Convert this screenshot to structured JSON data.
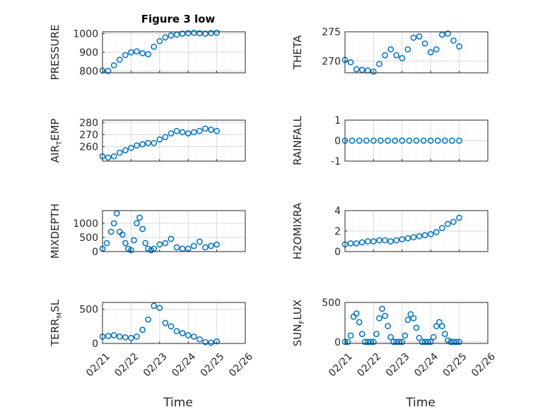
{
  "figure": {
    "title": "Figure 3 low"
  },
  "colors": {
    "marker": "#0072BD",
    "axis": "#262626",
    "grid": "#d9d9d9",
    "background": "#ffffff"
  },
  "x_ticks": [
    "02/21",
    "02/22",
    "02/23",
    "02/24",
    "02/25",
    "02/26"
  ],
  "x_label": "Time",
  "chart_data": [
    {
      "type": "scatter",
      "title": "Figure 3 low",
      "ylabel": "PRESSURE",
      "ylim": [
        790,
        1010
      ],
      "yticks": [
        800,
        900,
        1000
      ],
      "grid": "on",
      "xlim": [
        "02/21",
        "02/26"
      ],
      "x": [
        0,
        0.2,
        0.4,
        0.6,
        0.8,
        1.0,
        1.2,
        1.4,
        1.6,
        1.8,
        2.0,
        2.2,
        2.4,
        2.6,
        2.8,
        3.0,
        3.2,
        3.4,
        3.6,
        3.8,
        4.0
      ],
      "values": [
        802,
        800,
        830,
        860,
        885,
        900,
        905,
        895,
        890,
        930,
        960,
        980,
        990,
        995,
        1000,
        1003,
        1005,
        1002,
        1000,
        1003,
        1005
      ]
    },
    {
      "type": "scatter",
      "ylabel": "THETA",
      "ylim": [
        268,
        275
      ],
      "yticks": [
        270,
        275
      ],
      "grid": "on",
      "x": [
        0,
        0.2,
        0.4,
        0.6,
        0.8,
        1.0,
        1.2,
        1.4,
        1.6,
        1.8,
        2.0,
        2.2,
        2.4,
        2.6,
        2.8,
        3.0,
        3.2,
        3.4,
        3.6,
        3.8,
        4.0
      ],
      "values": [
        270.2,
        269.8,
        268.6,
        268.5,
        268.4,
        268.2,
        269.5,
        271,
        272,
        271,
        270.5,
        272,
        274,
        274.2,
        273,
        271.5,
        272,
        274.5,
        274.7,
        273.5,
        272.5
      ]
    },
    {
      "type": "scatter",
      "ylabel": "AIR_TEMP",
      "ylim": [
        248,
        282
      ],
      "yticks": [
        260,
        270,
        280
      ],
      "grid": "on",
      "x": [
        0,
        0.2,
        0.4,
        0.6,
        0.8,
        1.0,
        1.2,
        1.4,
        1.6,
        1.8,
        2.0,
        2.2,
        2.4,
        2.6,
        2.8,
        3.0,
        3.2,
        3.4,
        3.6,
        3.8,
        4.0
      ],
      "values": [
        252,
        251,
        252,
        255,
        257,
        259,
        261,
        262,
        263,
        263,
        266,
        268,
        271,
        273,
        272,
        271,
        272,
        273,
        275,
        274,
        273
      ]
    },
    {
      "type": "scatter",
      "ylabel": "RAINFALL",
      "ylim": [
        -1,
        1
      ],
      "yticks": [
        -1,
        0,
        1
      ],
      "grid": "on",
      "x": [
        0,
        0.25,
        0.5,
        0.75,
        1.0,
        1.25,
        1.5,
        1.75,
        2.0,
        2.25,
        2.5,
        2.75,
        3.0,
        3.25,
        3.5,
        3.75,
        4.0
      ],
      "values": [
        0,
        0,
        0,
        0,
        0,
        0,
        0,
        0,
        0,
        0,
        0,
        0,
        0,
        0,
        0,
        0,
        0
      ]
    },
    {
      "type": "scatter",
      "ylabel": "MIXDEPTH",
      "ylim": [
        0,
        1450
      ],
      "yticks": [
        0,
        500,
        1000
      ],
      "grid": "on",
      "x": [
        0,
        0.15,
        0.3,
        0.4,
        0.5,
        0.6,
        0.7,
        0.8,
        0.9,
        1.0,
        1.1,
        1.2,
        1.3,
        1.4,
        1.5,
        1.6,
        1.7,
        1.8,
        2.0,
        2.2,
        2.4,
        2.6,
        2.8,
        3.0,
        3.2,
        3.4,
        3.6,
        3.8,
        4.0
      ],
      "values": [
        100,
        300,
        700,
        1000,
        1350,
        700,
        600,
        300,
        100,
        50,
        400,
        1000,
        1200,
        800,
        300,
        100,
        50,
        100,
        250,
        300,
        450,
        150,
        100,
        100,
        200,
        350,
        150,
        200,
        250
      ]
    },
    {
      "type": "scatter",
      "ylabel": "H2OMIXRA",
      "ylim": [
        0,
        4
      ],
      "yticks": [
        0,
        2,
        4
      ],
      "grid": "on",
      "x": [
        0,
        0.2,
        0.4,
        0.6,
        0.8,
        1.0,
        1.2,
        1.4,
        1.6,
        1.8,
        2.0,
        2.2,
        2.4,
        2.6,
        2.8,
        3.0,
        3.2,
        3.4,
        3.6,
        3.8,
        4.0
      ],
      "values": [
        0.7,
        0.8,
        0.8,
        0.9,
        1.0,
        1.0,
        1.1,
        1.1,
        1.0,
        1.1,
        1.2,
        1.3,
        1.4,
        1.5,
        1.6,
        1.7,
        1.9,
        2.3,
        2.7,
        2.9,
        3.3
      ]
    },
    {
      "type": "scatter",
      "ylabel": "TERR_MSL",
      "ylim": [
        0,
        600
      ],
      "yticks": [
        0,
        500
      ],
      "grid": "on",
      "x": [
        0,
        0.2,
        0.4,
        0.6,
        0.8,
        1.0,
        1.2,
        1.4,
        1.6,
        1.8,
        2.0,
        2.2,
        2.4,
        2.6,
        2.8,
        3.0,
        3.2,
        3.4,
        3.6,
        3.8,
        4.0
      ],
      "values": [
        100,
        110,
        120,
        100,
        90,
        80,
        100,
        200,
        350,
        550,
        520,
        300,
        250,
        180,
        150,
        120,
        100,
        60,
        20,
        10,
        30
      ]
    },
    {
      "type": "scatter",
      "ylabel": "SUN_FLUX",
      "ylim": [
        -20,
        500
      ],
      "yticks": [
        0,
        500
      ],
      "grid": "on",
      "x": [
        0,
        0.1,
        0.2,
        0.3,
        0.4,
        0.5,
        0.6,
        0.7,
        0.8,
        0.9,
        1.0,
        1.1,
        1.2,
        1.3,
        1.4,
        1.5,
        1.6,
        1.7,
        1.8,
        1.9,
        2.0,
        2.1,
        2.2,
        2.3,
        2.4,
        2.5,
        2.6,
        2.7,
        2.8,
        2.9,
        3.0,
        3.1,
        3.2,
        3.3,
        3.4,
        3.5,
        3.6,
        3.7,
        3.8,
        3.9,
        4.0
      ],
      "values": [
        0,
        0,
        80,
        320,
        360,
        250,
        100,
        0,
        0,
        0,
        0,
        100,
        300,
        420,
        330,
        200,
        60,
        0,
        0,
        0,
        0,
        80,
        280,
        350,
        300,
        180,
        50,
        0,
        0,
        0,
        0,
        60,
        200,
        250,
        200,
        100,
        20,
        0,
        0,
        0,
        0
      ]
    }
  ]
}
